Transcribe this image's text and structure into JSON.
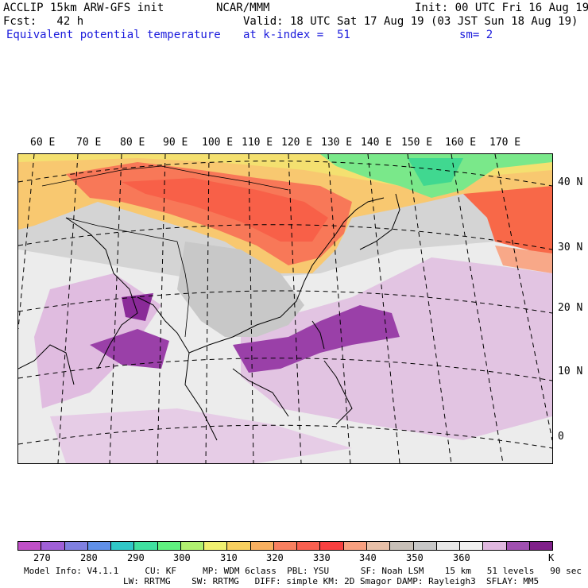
{
  "header": {
    "model": "ACCLIP 15km ARW-GFS init",
    "org": "NCAR/MMM",
    "init": "Init: 00 UTC Fri 16 Aug 19",
    "fcst": "Fcst:   42 h",
    "valid": "Valid: 18 UTC Sat 17 Aug 19 (03 JST Sun 18 Aug 19)",
    "field": "Equivalent potential temperature",
    "level": "at k-index =  51",
    "smooth": "sm= 2"
  },
  "map": {
    "lon_labels": [
      "60 E",
      "70 E",
      "80 E",
      "90 E",
      "100 E",
      "110 E",
      "120 E",
      "130 E",
      "140 E",
      "150 E",
      "160 E",
      "170 E"
    ],
    "lat_labels": [
      "40 N",
      "30 N",
      "20 N",
      "10 N",
      "0"
    ]
  },
  "colorbar": {
    "colors": [
      "#c050c8",
      "#a060d8",
      "#8080e0",
      "#6090e8",
      "#30c8c8",
      "#40e0a0",
      "#60f080",
      "#b0f070",
      "#f0f070",
      "#f8d060",
      "#f8b060",
      "#f88060",
      "#f86050",
      "#f84040",
      "#f8a080",
      "#e8c0a8",
      "#c8c0b8",
      "#c8c8c8",
      "#e8e8e8",
      "#f0f0f0",
      "#e0b8e0",
      "#a050b0",
      "#80208a"
    ],
    "labels": [
      "270",
      "280",
      "290",
      "300",
      "310",
      "320",
      "330",
      "340",
      "350",
      "360"
    ],
    "unit": "K"
  },
  "footer": {
    "line1": "Model Info: V4.1.1     CU: KF     MP: WDM 6class  PBL: YSU      SF: Noah LSM    15 km   51 levels   90 sec",
    "line2": "LW: RRTMG    SW: RRTMG   DIFF: simple KM: 2D Smagor DAMP: Rayleigh3  SFLAY: MM5"
  }
}
